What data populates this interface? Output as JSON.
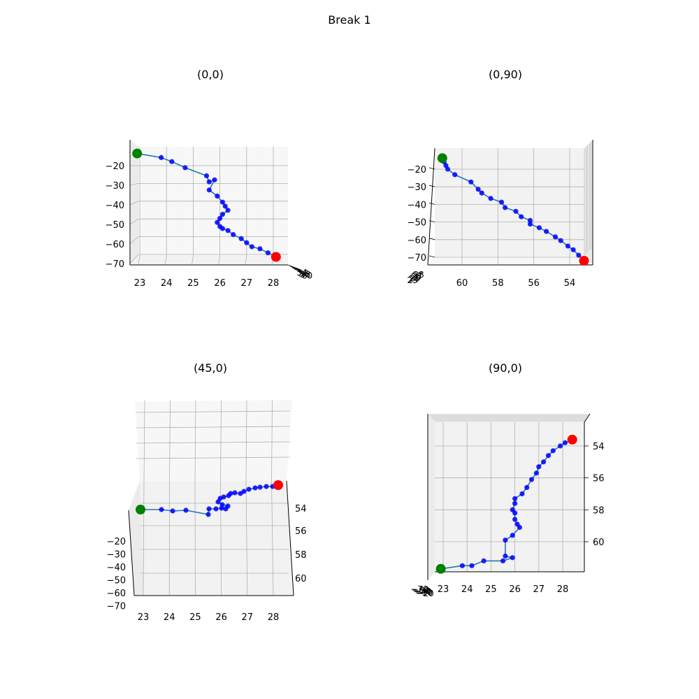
{
  "figure": {
    "title": "Break 1"
  },
  "colors": {
    "path": "#1f77b4",
    "point": "#0000ff",
    "start": "#008000",
    "end": "#ff0000",
    "pane_light": "#f7f7f7",
    "pane_mid": "#f2f2f2",
    "pane_dark": "#ebebeb",
    "grid": "#b0b0b0"
  },
  "chart_data": [
    {
      "type": "line",
      "title": "(0,0)",
      "x_ticks": [
        "23",
        "24",
        "25",
        "26",
        "27",
        "28"
      ],
      "z_ticks": [
        "−20",
        "−30",
        "−40",
        "−50",
        "−60",
        "−70"
      ],
      "depth_ticks": [
        "54",
        "56",
        "58",
        "60"
      ],
      "x": [
        22.9,
        23.8,
        24.2,
        24.7,
        25.5,
        25.6,
        25.8,
        25.6,
        25.9,
        26.1,
        26.2,
        26.3,
        26.1,
        26.0,
        25.9,
        26.0,
        26.1,
        26.3,
        26.5,
        26.8,
        27.0,
        27.2,
        27.5,
        27.8,
        28.1
      ],
      "z": [
        -14,
        -16,
        -18,
        -21,
        -25,
        -28,
        -27,
        -32,
        -35,
        -38,
        -40,
        -42,
        -44,
        -46,
        -48,
        -50,
        -51,
        -52,
        -54,
        -56,
        -58,
        -60,
        -61,
        -63,
        -65
      ],
      "start": {
        "x": 22.9,
        "z": -14
      },
      "end": {
        "x": 28.1,
        "z": -65
      }
    },
    {
      "type": "line",
      "title": "(0,90)",
      "x_ticks": [
        "60",
        "58",
        "56",
        "54"
      ],
      "z_ticks": [
        "−20",
        "−30",
        "−40",
        "−50",
        "−60",
        "−70"
      ],
      "depth_ticks": [
        "23",
        "24",
        "25",
        "26",
        "27",
        "28"
      ],
      "y": [
        61.1,
        61.0,
        60.9,
        60.8,
        60.4,
        59.5,
        59.1,
        58.9,
        58.4,
        57.8,
        57.6,
        57.0,
        56.7,
        56.2,
        56.2,
        55.7,
        55.3,
        54.8,
        54.5,
        54.1,
        53.8,
        53.5,
        53.2
      ],
      "z": [
        -14,
        -16,
        -18,
        -20,
        -23,
        -27,
        -31,
        -33,
        -36,
        -38,
        -41,
        -43,
        -46,
        -48,
        -50,
        -52,
        -54,
        -57,
        -59,
        -62,
        -64,
        -67,
        -70
      ],
      "start": {
        "y": 61.1,
        "z": -14
      },
      "end": {
        "y": 53.2,
        "z": -70
      }
    },
    {
      "type": "line",
      "title": "(45,0)",
      "x_ticks": [
        "23",
        "24",
        "25",
        "26",
        "27",
        "28"
      ],
      "z_ticks": [
        "−20",
        "−30",
        "−40",
        "−50",
        "−60",
        "−70"
      ],
      "y_ticks": [
        "54",
        "56",
        "58",
        "60"
      ]
    },
    {
      "type": "line",
      "title": "(90,0)",
      "x_ticks": [
        "23",
        "24",
        "25",
        "26",
        "27",
        "28"
      ],
      "y_ticks": [
        "54",
        "56",
        "58",
        "60"
      ],
      "depth_ticks": [
        "−70",
        "−60",
        "−50",
        "−40",
        "−30",
        "−20"
      ],
      "x": [
        22.9,
        23.8,
        24.2,
        24.7,
        25.5,
        25.9,
        25.6,
        25.6,
        25.9,
        26.2,
        26.1,
        26.0,
        26.0,
        25.9,
        26.0,
        26.0,
        26.3,
        26.5,
        26.7,
        26.9,
        27.0,
        27.2,
        27.4,
        27.6,
        27.9,
        28.1,
        28.4
      ],
      "y": [
        61.7,
        61.5,
        61.5,
        61.2,
        61.2,
        61.0,
        60.9,
        59.9,
        59.6,
        59.1,
        58.9,
        58.6,
        58.2,
        58.0,
        57.6,
        57.3,
        57.0,
        56.6,
        56.1,
        55.7,
        55.3,
        55.0,
        54.6,
        54.3,
        54.0,
        53.8,
        53.6
      ],
      "start": {
        "x": 22.9,
        "y": 61.7
      },
      "end": {
        "x": 28.4,
        "y": 53.6
      }
    }
  ]
}
